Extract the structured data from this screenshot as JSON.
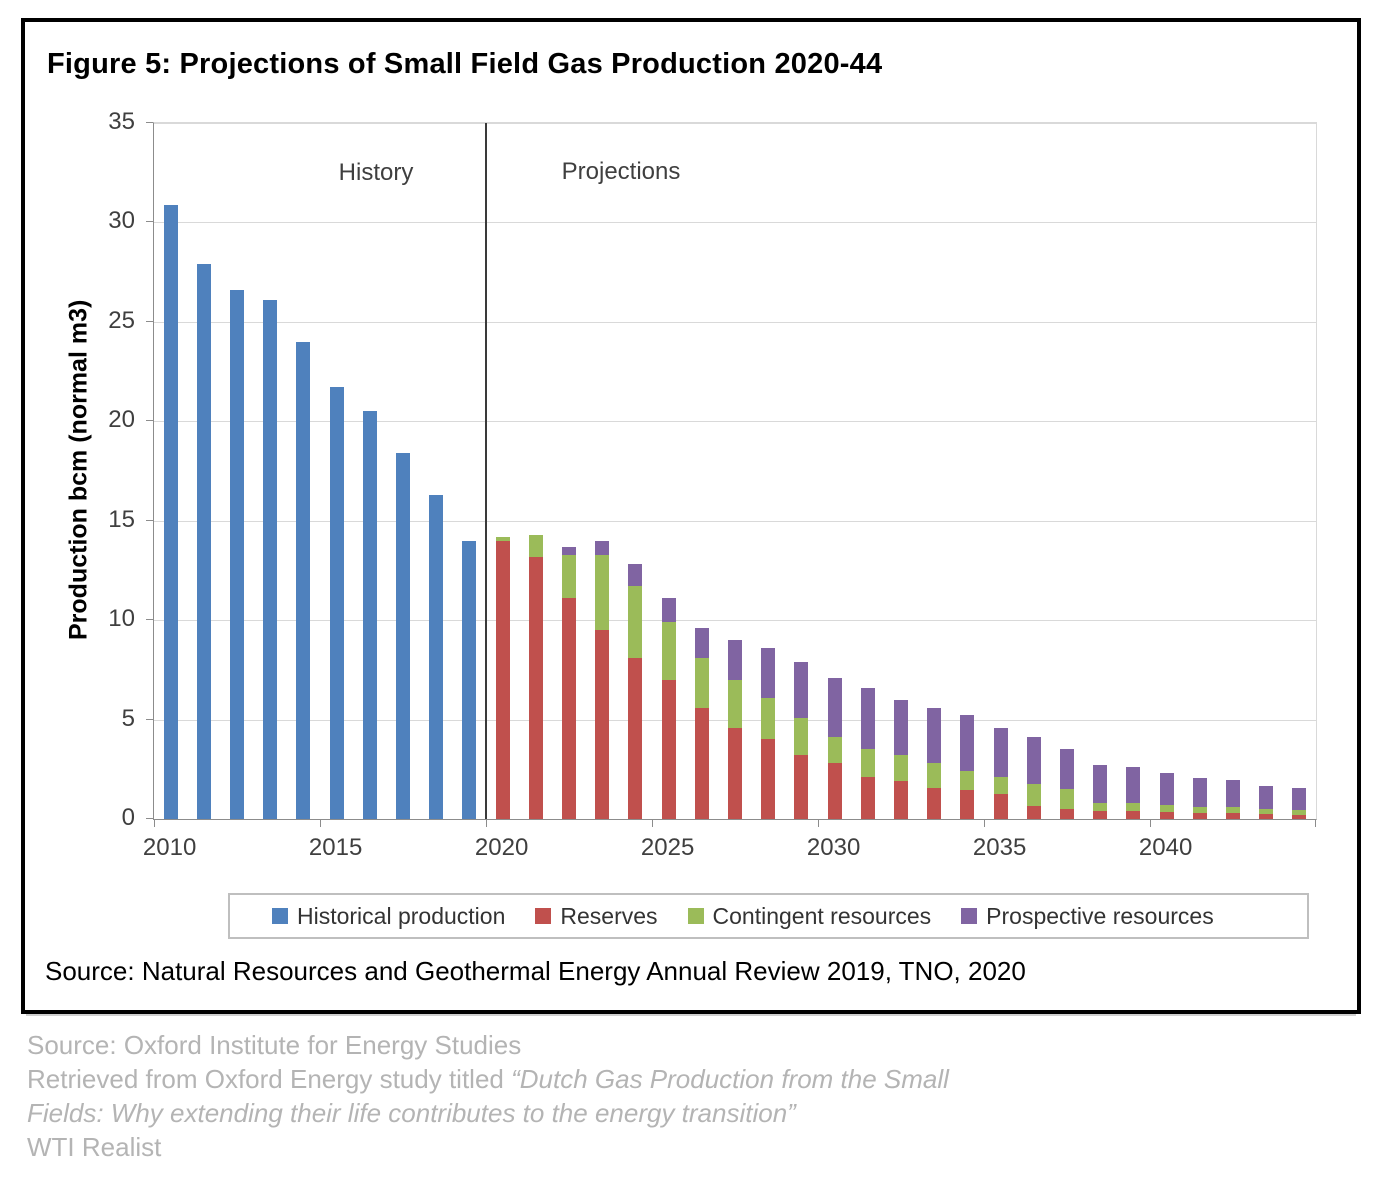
{
  "figure": {
    "title": "Figure 5: Projections of Small Field Gas Production 2020-44",
    "source_note": "Source: Natural Resources and Geothermal Energy Annual Review 2019, TNO, 2020"
  },
  "chart_data": {
    "type": "bar",
    "stacked": true,
    "title": "Figure 5: Projections of Small Field Gas Production 2020-44",
    "xlabel": "",
    "ylabel": "Production bcm (normal m3)",
    "ylim": [
      0,
      35
    ],
    "yticks": [
      0,
      5,
      10,
      15,
      20,
      25,
      30,
      35
    ],
    "xticks": [
      2010,
      2015,
      2020,
      2025,
      2030,
      2035,
      2040
    ],
    "grid": true,
    "legend_position": "bottom",
    "zone_labels": [
      "History",
      "Projections"
    ],
    "separator_before_year": 2020,
    "categories": [
      2010,
      2011,
      2012,
      2013,
      2014,
      2015,
      2016,
      2017,
      2018,
      2019,
      2020,
      2021,
      2022,
      2023,
      2024,
      2025,
      2026,
      2027,
      2028,
      2029,
      2030,
      2031,
      2032,
      2033,
      2034,
      2035,
      2036,
      2037,
      2038,
      2039,
      2040,
      2041,
      2042,
      2043,
      2044
    ],
    "series": [
      {
        "name": "Historical production",
        "color": "#4f81bd",
        "values": [
          30.9,
          27.9,
          26.6,
          26.1,
          24.0,
          21.7,
          20.5,
          18.4,
          16.3,
          14.0,
          0,
          0,
          0,
          0,
          0,
          0,
          0,
          0,
          0,
          0,
          0,
          0,
          0,
          0,
          0,
          0,
          0,
          0,
          0,
          0,
          0,
          0,
          0,
          0,
          0
        ]
      },
      {
        "name": "Reserves",
        "color": "#c0504d",
        "values": [
          0,
          0,
          0,
          0,
          0,
          0,
          0,
          0,
          0,
          0,
          14.0,
          13.2,
          11.1,
          9.5,
          8.1,
          7.0,
          5.6,
          4.6,
          4.0,
          3.2,
          2.8,
          2.1,
          1.9,
          1.55,
          1.45,
          1.25,
          0.65,
          0.5,
          0.4,
          0.4,
          0.35,
          0.3,
          0.3,
          0.25,
          0.2
        ]
      },
      {
        "name": "Contingent resources",
        "color": "#9bbb59",
        "values": [
          0,
          0,
          0,
          0,
          0,
          0,
          0,
          0,
          0,
          0,
          0.2,
          1.1,
          2.2,
          3.8,
          3.6,
          2.9,
          2.5,
          2.4,
          2.1,
          1.9,
          1.3,
          1.4,
          1.3,
          1.25,
          0.95,
          0.85,
          1.1,
          1.0,
          0.4,
          0.4,
          0.35,
          0.3,
          0.3,
          0.25,
          0.25
        ]
      },
      {
        "name": "Prospective resources",
        "color": "#8064a2",
        "values": [
          0,
          0,
          0,
          0,
          0,
          0,
          0,
          0,
          0,
          0,
          0,
          0,
          0.4,
          0.7,
          1.1,
          1.2,
          1.5,
          2.0,
          2.5,
          2.8,
          3.0,
          3.1,
          2.8,
          2.8,
          2.85,
          2.5,
          2.35,
          2.0,
          1.9,
          1.8,
          1.6,
          1.45,
          1.35,
          1.15,
          1.1
        ]
      }
    ]
  },
  "footer": {
    "line1": "Source: Oxford Institute for Energy Studies",
    "line2_prefix": "Retrieved from Oxford Energy study titled ",
    "line2_italic": "“Dutch Gas Production from the Small",
    "line3_italic": "Fields: Why extending their life contributes to the energy transition”",
    "line4": "WTI Realist"
  }
}
